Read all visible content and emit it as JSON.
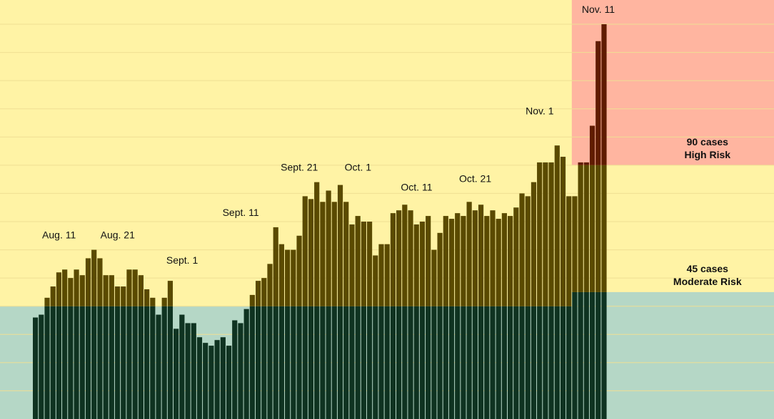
{
  "chart_data": {
    "type": "bar",
    "title": "",
    "xlabel": "",
    "ylabel": "",
    "x_tick_labels": [
      {
        "label": "Aug. 11",
        "date": "2020-08-11"
      },
      {
        "label": "Aug. 21",
        "date": "2020-08-21"
      },
      {
        "label": "Sept. 1",
        "date": "2020-09-01"
      },
      {
        "label": "Sept. 11",
        "date": "2020-09-11"
      },
      {
        "label": "Sept. 21",
        "date": "2020-09-21"
      },
      {
        "label": "Oct. 1",
        "date": "2020-10-01"
      },
      {
        "label": "Oct. 11",
        "date": "2020-10-11"
      },
      {
        "label": "Oct. 21",
        "date": "2020-10-21"
      },
      {
        "label": "Nov. 1",
        "date": "2020-11-01"
      },
      {
        "label": "Nov. 11",
        "date": "2020-11-11"
      }
    ],
    "first_date": "2020-08-06",
    "values": [
      36,
      37,
      43,
      47,
      52,
      53,
      50,
      53,
      51,
      57,
      60,
      57,
      51,
      51,
      47,
      47,
      53,
      53,
      51,
      46,
      43,
      37,
      43,
      49,
      32,
      37,
      34,
      34,
      29,
      27,
      26,
      28,
      29,
      26,
      35,
      34,
      39,
      44,
      49,
      50,
      55,
      68,
      62,
      60,
      60,
      65,
      79,
      78,
      84,
      77,
      81,
      77,
      83,
      77,
      69,
      72,
      70,
      70,
      58,
      62,
      62,
      73,
      74,
      76,
      74,
      69,
      70,
      72,
      60,
      66,
      72,
      71,
      73,
      72,
      77,
      74,
      76,
      72,
      74,
      71,
      73,
      72,
      75,
      80,
      79,
      84,
      91,
      91,
      91,
      97,
      93,
      79,
      79,
      91,
      91,
      104,
      134,
      140
    ],
    "ylim": [
      0,
      140
    ],
    "grid": true,
    "thresholds": [
      {
        "value": 45,
        "label_line1": "45 cases",
        "label_line2": "Moderate Risk"
      },
      {
        "value": 90,
        "label_line1": "90 cases",
        "label_line2": "High Risk"
      }
    ],
    "threshold_start_date": "2020-11-06",
    "prior_thresholds": [
      40
    ],
    "colors": {
      "background": "#fff3a5",
      "moderate_band": "#b5d7c6",
      "high_band": "#ffb5a0",
      "bar_on_yellow": "#5a4a00",
      "bar_on_green": "#0f3321",
      "bar_on_red": "#601c00",
      "gridline": "#efdf93"
    }
  }
}
